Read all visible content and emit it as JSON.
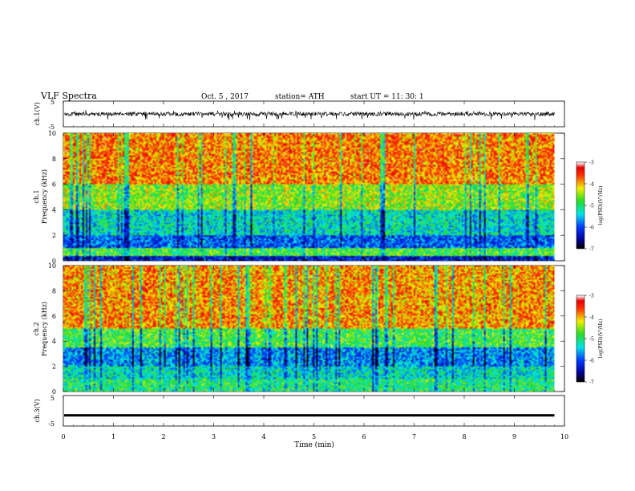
{
  "header": {
    "title": "VLF  Spectra",
    "date": "Oct. 5  , 2017",
    "station": "station= ATH",
    "start": "start  UT  =    11: 30: 1"
  },
  "chart_data": [
    {
      "type": "line",
      "panel": "ch1-waveform",
      "ylabel": "ch.1(V)",
      "ylim": [
        -5,
        5
      ],
      "y_ticks": [
        "5",
        "-5"
      ],
      "xlim": [
        0,
        10
      ],
      "x_end": 9.8,
      "amplitude_range": [
        -2.5,
        1.5
      ]
    },
    {
      "type": "heatmap",
      "panel": "ch1-spectrogram",
      "ylabel_lines": [
        "ch.1",
        "Frequency  (kHz)"
      ],
      "ylim": [
        0,
        10
      ],
      "y_ticks": [
        "0",
        "2",
        "4",
        "6",
        "8",
        "10"
      ],
      "xlim": [
        0,
        10
      ],
      "x_end": 9.8,
      "colorbar": {
        "label": "log(PSD)(V²/Hz)",
        "range": [
          -7,
          -3
        ],
        "ticks": [
          "-3",
          "-4",
          "-5",
          "-6",
          "-7"
        ]
      },
      "bands": [
        {
          "f": [
            0.0,
            0.35
          ],
          "log_psd": -6.3
        },
        {
          "f": [
            0.35,
            1.0
          ],
          "log_psd": -4.8
        },
        {
          "f": [
            1.0,
            2.0
          ],
          "log_psd": -5.9
        },
        {
          "f": [
            2.0,
            4.0
          ],
          "log_psd": -5.3
        },
        {
          "f": [
            4.0,
            6.0
          ],
          "log_psd": -4.5
        },
        {
          "f": [
            6.0,
            10.0
          ],
          "log_psd": -3.8
        }
      ]
    },
    {
      "type": "heatmap",
      "panel": "ch2-spectrogram",
      "ylabel_lines": [
        "ch.2",
        "Frequency  (kHz)"
      ],
      "ylim": [
        0,
        10
      ],
      "y_ticks": [
        "0",
        "2",
        "4",
        "6",
        "8",
        "10"
      ],
      "xlim": [
        0,
        10
      ],
      "x_end": 9.8,
      "colorbar": {
        "label": "log(PSD)(V²/Hz)",
        "range": [
          -7,
          -3
        ],
        "ticks": [
          "-3",
          "-4",
          "-5",
          "-6",
          "-7"
        ]
      },
      "bands": [
        {
          "f": [
            0.0,
            1.0
          ],
          "log_psd": -5.0
        },
        {
          "f": [
            1.0,
            2.0
          ],
          "log_psd": -5.3
        },
        {
          "f": [
            2.0,
            3.5
          ],
          "log_psd": -5.7
        },
        {
          "f": [
            3.5,
            5.0
          ],
          "log_psd": -4.8
        },
        {
          "f": [
            5.0,
            10.0
          ],
          "log_psd": -3.9
        }
      ]
    },
    {
      "type": "line",
      "panel": "ch3-waveform",
      "ylabel": "ch.3(V)",
      "ylim": [
        -5,
        5
      ],
      "y_ticks": [
        "5",
        "-5"
      ],
      "xlim": [
        0,
        10
      ],
      "x_end": 9.8,
      "value": -1.5
    }
  ],
  "x_axis": {
    "label": "Time  (min)",
    "ticks": [
      "0",
      "1",
      "2",
      "3",
      "4",
      "5",
      "6",
      "7",
      "8",
      "9",
      "10"
    ]
  }
}
